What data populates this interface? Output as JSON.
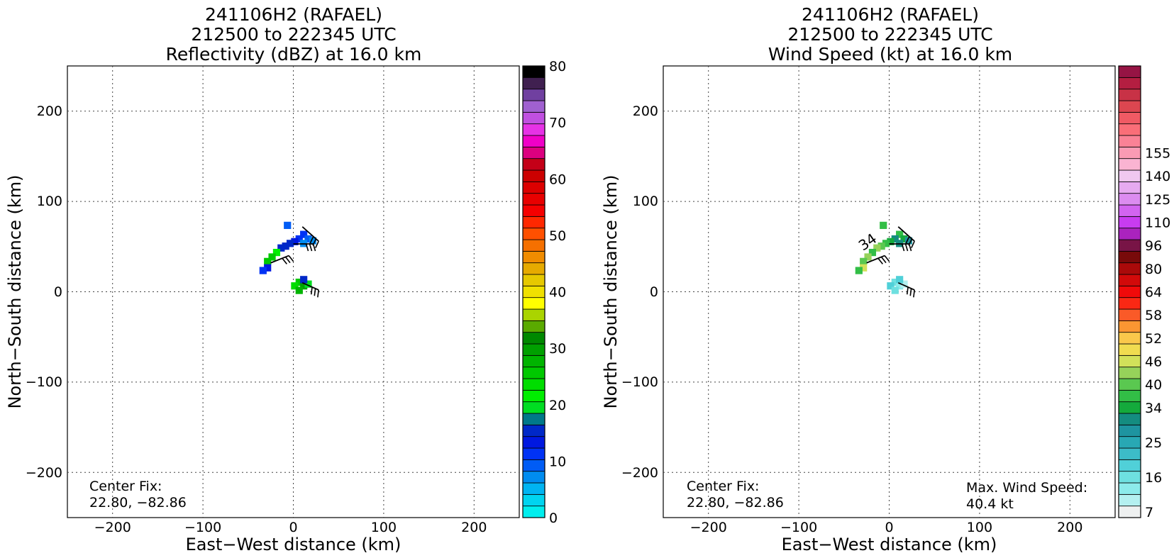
{
  "figure_title_note": "",
  "chart_data": [
    {
      "type": "heatmap",
      "title_lines": [
        "241106H2 (RAFAEL)",
        "212500 to 222345 UTC",
        "Reflectivity (dBZ) at 16.0 km"
      ],
      "xlabel": "East-West distance (km)",
      "ylabel": "North-South distance (km)",
      "xlim": [
        -250,
        250
      ],
      "ylim": [
        -250,
        250
      ],
      "xticks": [
        -200,
        -100,
        0,
        100,
        200
      ],
      "yticks": [
        -200,
        -100,
        0,
        100,
        200
      ],
      "grid": true,
      "annotation_left": [
        "Center Fix:",
        "22.80, -82.86"
      ],
      "annotation_right": [],
      "colorbar": {
        "min": 0,
        "max": 80,
        "step": 2.5,
        "tick_values": [
          0,
          10,
          20,
          30,
          40,
          50,
          60,
          70,
          80
        ],
        "colors": [
          "#00eeee",
          "#00d4f0",
          "#00b4f2",
          "#008cf0",
          "#005cf5",
          "#0032f5",
          "#0018e0",
          "#0028c8",
          "#00788a",
          "#00dd22",
          "#00ee00",
          "#00dd00",
          "#00c800",
          "#00b400",
          "#00a000",
          "#008800",
          "#5aaa00",
          "#aad400",
          "#ffff00",
          "#f0e000",
          "#e6c800",
          "#e6aa00",
          "#f08c00",
          "#f57000",
          "#ff5000",
          "#ff2800",
          "#f50000",
          "#e80000",
          "#dc0000",
          "#cc0000",
          "#c40018",
          "#dc0080",
          "#f000c8",
          "#e632e6",
          "#c050e0",
          "#a060d0",
          "#7040a0",
          "#402050",
          "#000000"
        ]
      },
      "cells": [
        {
          "x": 10,
          "y": 65,
          "value": 5
        },
        {
          "x": 15,
          "y": 60,
          "value": 4
        },
        {
          "x": 5,
          "y": 60,
          "value": 5
        },
        {
          "x": 0,
          "y": 57,
          "value": 6
        },
        {
          "x": -5,
          "y": 55,
          "value": 7
        },
        {
          "x": -10,
          "y": 52,
          "value": 7
        },
        {
          "x": -15,
          "y": 50,
          "value": 7
        },
        {
          "x": -20,
          "y": 45,
          "value": 10
        },
        {
          "x": -25,
          "y": 40,
          "value": 12
        },
        {
          "x": -30,
          "y": 35,
          "value": 12
        },
        {
          "x": -30,
          "y": 28,
          "value": 6
        },
        {
          "x": -35,
          "y": 25,
          "value": 5
        },
        {
          "x": 10,
          "y": 55,
          "value": 3
        },
        {
          "x": 20,
          "y": 58,
          "value": 3
        },
        {
          "x": -8,
          "y": 75,
          "value": 4
        },
        {
          "x": 5,
          "y": 12,
          "value": 12
        },
        {
          "x": 10,
          "y": 8,
          "value": 14
        },
        {
          "x": 0,
          "y": 8,
          "value": 11
        },
        {
          "x": 15,
          "y": 10,
          "value": 9
        },
        {
          "x": 5,
          "y": 3,
          "value": 13
        },
        {
          "x": 10,
          "y": 15,
          "value": 7
        }
      ],
      "barbs": [
        {
          "x": 10,
          "y": 72,
          "dx": 18,
          "dy": -16
        },
        {
          "x": 0,
          "y": 53,
          "dx": 22,
          "dy": 0
        },
        {
          "x": -25,
          "y": 32,
          "dx": 20,
          "dy": 8
        },
        {
          "x": 10,
          "y": 10,
          "dx": 18,
          "dy": -8
        }
      ],
      "contour_label": ""
    },
    {
      "type": "heatmap",
      "title_lines": [
        "241106H2 (RAFAEL)",
        "212500 to 222345 UTC",
        "Wind Speed (kt) at 16.0 km"
      ],
      "xlabel": "East-West distance (km)",
      "ylabel": "North-South distance (km)",
      "xlim": [
        -250,
        250
      ],
      "ylim": [
        -250,
        250
      ],
      "xticks": [
        -200,
        -100,
        0,
        100,
        200
      ],
      "yticks": [
        -200,
        -100,
        0,
        100,
        200
      ],
      "grid": true,
      "annotation_left": [
        "Center Fix:",
        "22.80, -82.86"
      ],
      "annotation_right": [
        "Max. Wind Speed:",
        "40.4 kt"
      ],
      "colorbar": {
        "tick_labels": [
          "7",
          "16",
          "25",
          "34",
          "40",
          "46",
          "52",
          "58",
          "64",
          "80",
          "96",
          "110",
          "125",
          "140",
          "155"
        ],
        "tick_bins": [
          0,
          3,
          6,
          9,
          11,
          13,
          15,
          17,
          19,
          21,
          23,
          25,
          27,
          29,
          31
        ],
        "colors": [
          "#eef0f0",
          "#b4f0f0",
          "#8cebeb",
          "#6ee0e0",
          "#50d0d8",
          "#3cbcc8",
          "#28a8b4",
          "#1e94a0",
          "#148c80",
          "#14aa3c",
          "#32be46",
          "#5ac850",
          "#96d25a",
          "#d2e15a",
          "#f0dc50",
          "#fac84b",
          "#fa9632",
          "#fa5a28",
          "#fa2814",
          "#f00a0a",
          "#d20a0a",
          "#aa0a0a",
          "#780a0a",
          "#781446",
          "#aa23be",
          "#c83cf0",
          "#d264f0",
          "#dc8cf0",
          "#e6aaf0",
          "#f0c8f0",
          "#fab4d2",
          "#fa9bb4",
          "#fa8296",
          "#fa6e78",
          "#f05a64",
          "#dc4650",
          "#c83246",
          "#b41e41",
          "#961444"
        ]
      },
      "cells": [
        {
          "x": 10,
          "y": 65,
          "value": 10
        },
        {
          "x": 15,
          "y": 60,
          "value": 9
        },
        {
          "x": 5,
          "y": 60,
          "value": 8
        },
        {
          "x": 0,
          "y": 57,
          "value": 9
        },
        {
          "x": -5,
          "y": 55,
          "value": 10
        },
        {
          "x": -10,
          "y": 52,
          "value": 11
        },
        {
          "x": -15,
          "y": 50,
          "value": 12
        },
        {
          "x": -20,
          "y": 45,
          "value": 10
        },
        {
          "x": -25,
          "y": 40,
          "value": 12
        },
        {
          "x": -30,
          "y": 35,
          "value": 11
        },
        {
          "x": -30,
          "y": 28,
          "value": 13
        },
        {
          "x": -35,
          "y": 25,
          "value": 10
        },
        {
          "x": 10,
          "y": 55,
          "value": 8
        },
        {
          "x": 20,
          "y": 58,
          "value": 7
        },
        {
          "x": -8,
          "y": 75,
          "value": 10
        },
        {
          "x": 5,
          "y": 12,
          "value": 3
        },
        {
          "x": 10,
          "y": 8,
          "value": 2
        },
        {
          "x": 0,
          "y": 8,
          "value": 4
        },
        {
          "x": 15,
          "y": 10,
          "value": 1
        },
        {
          "x": 5,
          "y": 3,
          "value": 3
        },
        {
          "x": 10,
          "y": 15,
          "value": 4
        }
      ],
      "barbs": [
        {
          "x": 10,
          "y": 72,
          "dx": 18,
          "dy": -16
        },
        {
          "x": 0,
          "y": 53,
          "dx": 22,
          "dy": 0
        },
        {
          "x": -25,
          "y": 32,
          "dx": 20,
          "dy": 8
        },
        {
          "x": 10,
          "y": 10,
          "dx": 18,
          "dy": -8
        }
      ],
      "contour_label": "34"
    }
  ]
}
